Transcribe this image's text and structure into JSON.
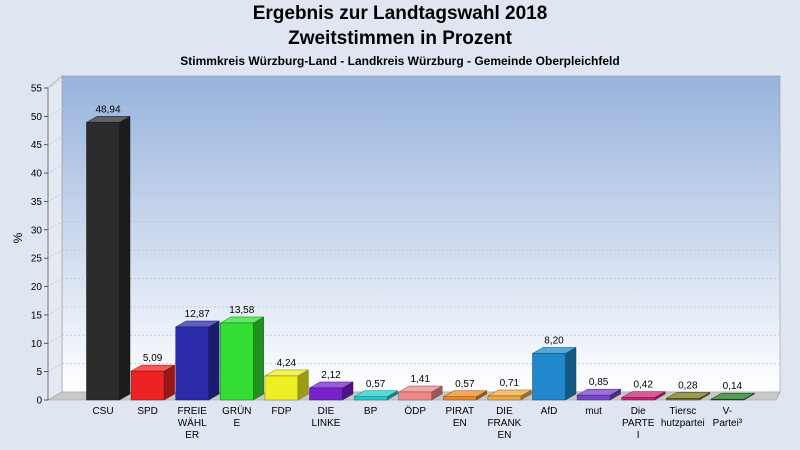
{
  "chart_data": {
    "type": "bar",
    "title": "Ergebnis zur Landtagswahl 2018",
    "subtitle": "Zweitstimmen in Prozent",
    "subsubtitle": "Stimmkreis Würzburg-Land - Landkreis Würzburg - Gemeinde Oberpleichfeld",
    "ylabel": "%",
    "ylim": [
      0,
      55
    ],
    "yticks": [
      0,
      5,
      10,
      15,
      20,
      25,
      30,
      35,
      40,
      45,
      50,
      55
    ],
    "grid": true,
    "categories": [
      [
        "CSU"
      ],
      [
        "SPD"
      ],
      [
        "FREIE",
        "WÄHL",
        "ER"
      ],
      [
        "GRÜN",
        "E"
      ],
      [
        "FDP"
      ],
      [
        "DIE",
        "LINKE"
      ],
      [
        "BP"
      ],
      [
        "ÖDP"
      ],
      [
        "PIRAT",
        "EN"
      ],
      [
        "DIE",
        "FRANK",
        "EN"
      ],
      [
        "AfD"
      ],
      [
        "mut"
      ],
      [
        "Die",
        "PARTE",
        "I"
      ],
      [
        "Tiersc",
        "hutzpartei"
      ],
      [
        "V-",
        "Partei³"
      ]
    ],
    "values": [
      48.94,
      5.09,
      12.87,
      13.58,
      4.24,
      2.12,
      0.57,
      1.41,
      0.57,
      0.71,
      8.2,
      0.85,
      0.42,
      0.28,
      0.14
    ],
    "value_labels": [
      "48,94",
      "5,09",
      "12,87",
      "13,58",
      "4,24",
      "2,12",
      "0,57",
      "1,41",
      "0,57",
      "0,71",
      "8,20",
      "0,85",
      "0,42",
      "0,28",
      "0,14"
    ],
    "colors": [
      "#2b2b2b",
      "#ee2222",
      "#2b2baa",
      "#33dd33",
      "#eeee22",
      "#7722cc",
      "#22cccc",
      "#ee8888",
      "#ee8822",
      "#eeaa44",
      "#2288cc",
      "#7744cc",
      "#cc2277",
      "#777722",
      "#227722"
    ]
  }
}
